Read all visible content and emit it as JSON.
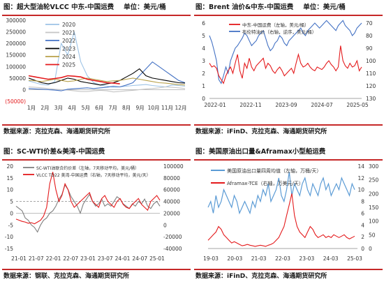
{
  "chart_data": [
    {
      "type": "line",
      "title": "图：超大型油轮VLCC 中东-中国运费",
      "unit_label": "单位：美元/桶",
      "source": "数据来源：克拉克森、海通期货研究所",
      "x_ticks": [
        "1月",
        "2月",
        "3月",
        "4月",
        "5月",
        "6月",
        "7月",
        "8月",
        "9月",
        "10月",
        "11月",
        "12月"
      ],
      "y_ticks": [
        "300000",
        "250000",
        "200000",
        "150000",
        "100000",
        "50000",
        "0",
        "(50000)"
      ],
      "ylim": [
        -50000,
        300000
      ],
      "legend_position": "top-left",
      "series": [
        {
          "name": "2020",
          "color": "#9dc3e6",
          "values": [
            38000,
            30000,
            22000,
            20000,
            35000,
            200000,
            150000,
            250000,
            120000,
            60000,
            30000,
            20000,
            15000,
            10000,
            12000,
            15000,
            18000,
            20000,
            22000,
            18000,
            15000,
            12000,
            20000,
            18000,
            15000
          ]
        },
        {
          "name": "2021",
          "color": "#c5c5c5",
          "values": [
            12000,
            10000,
            8000,
            5000,
            2000,
            0,
            -2000,
            -5000,
            -8000,
            -8000,
            -5000,
            -3000,
            -5000,
            -10000,
            -8000,
            -5000,
            -3000,
            0,
            3000,
            5000,
            8000,
            12000,
            10000,
            8000,
            5000
          ]
        },
        {
          "name": "2022",
          "color": "#4472c4",
          "values": [
            5000,
            3000,
            2000,
            0,
            -2000,
            -5000,
            2000,
            4000,
            6000,
            8000,
            5000,
            8000,
            10000,
            15000,
            12000,
            20000,
            30000,
            60000,
            90000,
            120000,
            100000,
            80000,
            60000,
            40000,
            30000
          ]
        },
        {
          "name": "2023",
          "color": "#000000",
          "values": [
            50000,
            40000,
            30000,
            25000,
            30000,
            40000,
            50000,
            45000,
            35000,
            30000,
            25000,
            20000,
            25000,
            30000,
            40000,
            55000,
            70000,
            90000,
            60000,
            50000,
            45000,
            40000,
            35000,
            30000,
            28000
          ]
        },
        {
          "name": "2024",
          "color": "#b8a14a",
          "values": [
            40000,
            38000,
            35000,
            40000,
            45000,
            40000,
            35000,
            38000,
            45000,
            50000,
            45000,
            40000,
            35000,
            38000,
            40000,
            45000,
            50000,
            45000,
            40000,
            35000,
            30000,
            28000,
            25000,
            22000,
            20000
          ]
        },
        {
          "name": "2025",
          "color": "#e41a1c",
          "values": [
            60000,
            55000,
            50000,
            45000,
            48000,
            52000,
            60000,
            58000,
            55000,
            45000,
            40000,
            35000,
            30000,
            28000,
            25000
          ]
        }
      ]
    },
    {
      "type": "line",
      "title": "图：Brent 油价&中东-中国运费",
      "unit_label": "单位：美元/桶",
      "source": "数据来源：iFinD、克拉克森、海通期货研究所",
      "x_ticks": [
        "2022-01",
        "2022-11",
        "2023-09",
        "2024-07",
        "2025-05"
      ],
      "y_left_ticks": [
        "6",
        "5",
        "4",
        "3",
        "2",
        "1",
        "0"
      ],
      "y_right_ticks": [
        "70",
        "80",
        "90",
        "100",
        "110",
        "120",
        "130"
      ],
      "ylim_left": [
        0,
        6
      ],
      "ylim_right_reversed": [
        70,
        130
      ],
      "legend_position": "top-left",
      "series": [
        {
          "name": "中东-中国运费（左轴，美元/桶）",
          "color": "#e41a1c",
          "axis": "left",
          "values": [
            2.8,
            2.5,
            2.6,
            2.4,
            1.8,
            1.5,
            1.2,
            1.8,
            2.2,
            2.5,
            2.0,
            2.8,
            3.5,
            2.2,
            1.6,
            2.8,
            2.4,
            3.2,
            2.5,
            2.2,
            2.6,
            2.8,
            3.0,
            3.2,
            2.4,
            2.8,
            2.6,
            2.2,
            2.0,
            2.3,
            2.5,
            2.2,
            1.8,
            2.0,
            2.2,
            2.4,
            2.0,
            2.8,
            3.5,
            2.8,
            2.5,
            2.6,
            2.8,
            2.5,
            2.3,
            2.2,
            2.5,
            2.4,
            2.3,
            2.5,
            2.8,
            3.0,
            2.7,
            2.5,
            2.2,
            2.5,
            4.2,
            3.0,
            2.6,
            2.4,
            2.8,
            2.5,
            2.6,
            3.0,
            2.2,
            2.5
          ]
        },
        {
          "name": "布伦特油价（右轴，逆序，美元/桶）",
          "color": "#4472c4",
          "axis": "right",
          "values": [
            80,
            85,
            92,
            100,
            115,
            118,
            112,
            105,
            110,
            100,
            95,
            90,
            88,
            85,
            82,
            78,
            80,
            84,
            88,
            86,
            84,
            80,
            78,
            76,
            82,
            88,
            92,
            90,
            86,
            84,
            80,
            82,
            86,
            88,
            84,
            82,
            80,
            78,
            76,
            74,
            78,
            80,
            76,
            74,
            72,
            70,
            72,
            74,
            72,
            70,
            68,
            70,
            72,
            74,
            76,
            72,
            70,
            68,
            72,
            74,
            76,
            80,
            78,
            74,
            72,
            70
          ]
        }
      ]
    },
    {
      "type": "line",
      "title": "图：SC-WTI价差&美湾-中国运费",
      "source": "数据来源：钢联、克拉克森、海通期货研究所",
      "x_ticks": [
        "21-01",
        "21-07",
        "22-01",
        "22-07",
        "23-01",
        "23-07",
        "24-01",
        "24-07",
        "25-01"
      ],
      "y_left_ticks": [
        "20",
        "15",
        "10",
        "5",
        "0",
        "-5",
        "-10",
        "-15"
      ],
      "y_right_ticks": [
        "100000",
        "80000",
        "60000",
        "40000",
        "20000",
        "0",
        "-20000",
        "-40000"
      ],
      "ylim_left": [
        -15,
        20
      ],
      "ylim_right": [
        -40000,
        100000
      ],
      "legend_position": "top-left",
      "series": [
        {
          "name": "SC-WTI油联合约价差（左轴，7天移动平均，美元/桶）",
          "color": "#7f7f7f",
          "axis": "left",
          "values": [
            3,
            2,
            1,
            -2,
            -3,
            -5,
            -6,
            -8,
            -5,
            -3,
            -2,
            0,
            1,
            3,
            6,
            8,
            12,
            10,
            7,
            5,
            3,
            0,
            4,
            6,
            8,
            5,
            3,
            4,
            6,
            3,
            4,
            3,
            5,
            7,
            6,
            4,
            3,
            2,
            4,
            3,
            5,
            4,
            6,
            3,
            2,
            4,
            5,
            3
          ]
        },
        {
          "name": "VLCC TD22 美湾-中国运费（右轴，7天移动平均，美元/天）",
          "color": "#e41a1c",
          "axis": "right",
          "values": [
            10000,
            8000,
            6000,
            5000,
            3000,
            4000,
            2000,
            5000,
            8000,
            15000,
            30000,
            70000,
            90000,
            60000,
            40000,
            50000,
            70000,
            60000,
            40000,
            30000,
            35000,
            40000,
            45000,
            50000,
            55000,
            40000,
            35000,
            30000,
            45000,
            50000,
            40000,
            35000,
            30000,
            40000,
            45000,
            35000,
            30000,
            28000,
            35000,
            40000,
            45000,
            35000,
            30000,
            25000,
            40000,
            45000,
            50000,
            42000
          ]
        }
      ]
    },
    {
      "type": "line",
      "title": "图：美国原油出口量&Aframax小型船运费",
      "source": "数据来源：iFinD、克拉克森、海通期货研究所",
      "x_ticks": [
        "19-03",
        "20-03",
        "21-03",
        "22-03",
        "23-03",
        "24-03",
        "25-03"
      ],
      "y_left_ticks": [
        "14",
        "12",
        "10",
        "8",
        "6",
        "4",
        "2",
        "0"
      ],
      "y_right_ticks": [
        "300",
        "250",
        "200",
        "150",
        "100",
        "50",
        "0"
      ],
      "ylim_left": [
        0,
        14
      ],
      "ylim_right": [
        0,
        300
      ],
      "legend_position": "top-left",
      "series": [
        {
          "name": "美国原油出口量四周均值（左轴，万桶/天）",
          "color": "#5b9bd5",
          "axis": "left",
          "values": [
            7,
            8,
            6,
            9,
            7,
            8,
            10,
            9,
            8,
            7,
            9,
            8,
            6,
            7,
            8,
            7,
            6,
            8,
            7,
            9,
            8,
            10,
            9,
            11,
            8,
            9,
            10,
            12,
            9,
            8,
            10,
            13,
            9,
            11,
            10,
            9,
            11,
            12,
            10,
            9,
            11,
            10,
            9,
            11,
            12,
            10,
            11,
            9,
            10,
            11,
            10,
            12,
            11,
            10,
            9,
            11,
            10
          ]
        },
        {
          "name": "Aframax-TCE（右轴，万美元/天）",
          "color": "#e41a1c",
          "axis": "right",
          "values": [
            30,
            40,
            50,
            60,
            80,
            70,
            50,
            40,
            30,
            20,
            25,
            20,
            15,
            10,
            12,
            15,
            12,
            10,
            8,
            10,
            12,
            10,
            8,
            12,
            15,
            20,
            30,
            40,
            60,
            80,
            120,
            160,
            200,
            120,
            80,
            60,
            50,
            40,
            60,
            80,
            70,
            50,
            40,
            45,
            50,
            40,
            45,
            40,
            50,
            45,
            40,
            45,
            50,
            40,
            35,
            40,
            45
          ]
        }
      ]
    }
  ]
}
